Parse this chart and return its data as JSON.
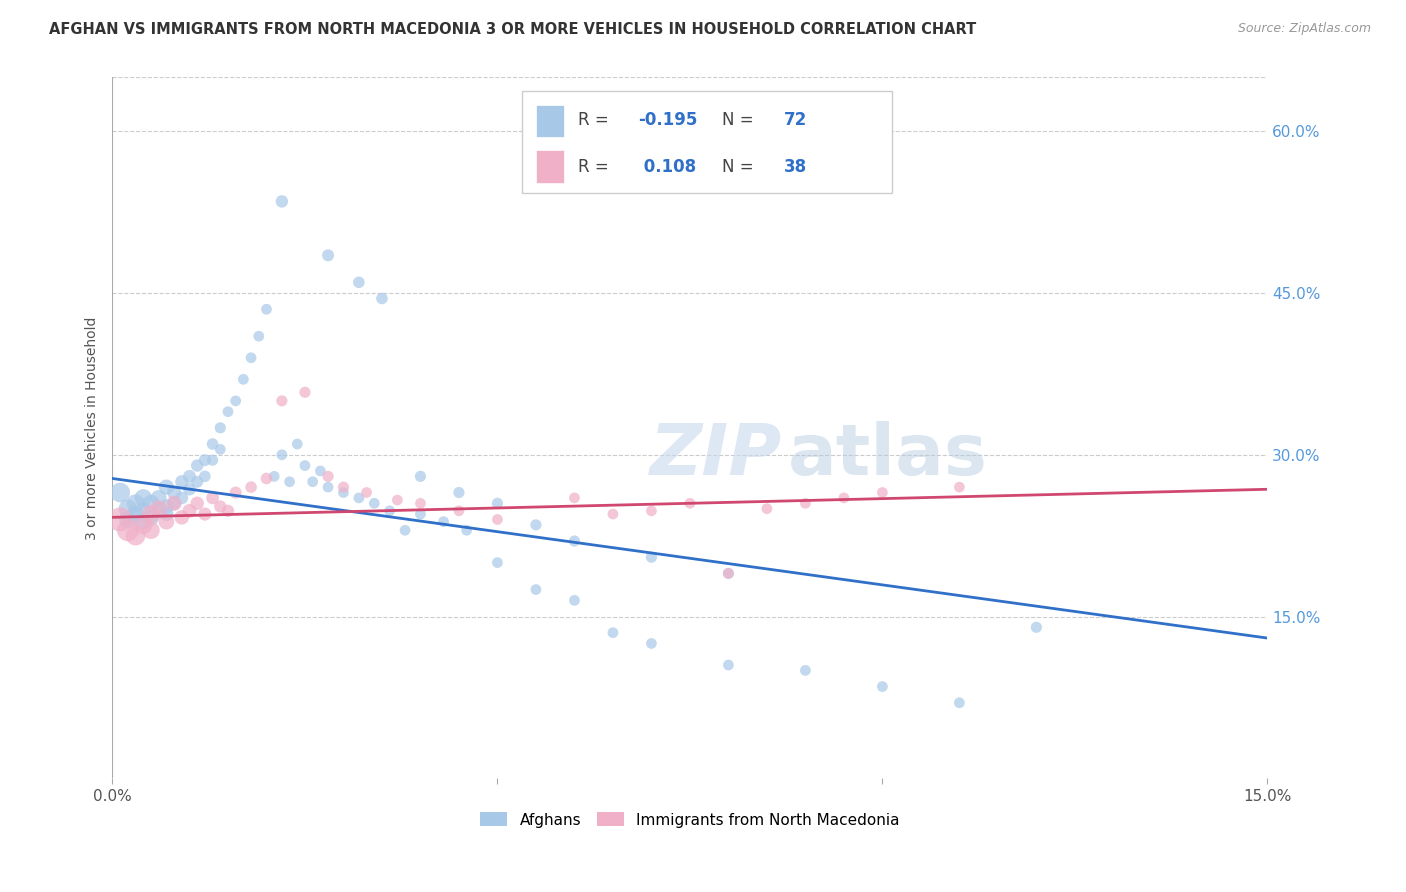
{
  "title": "AFGHAN VS IMMIGRANTS FROM NORTH MACEDONIA 3 OR MORE VEHICLES IN HOUSEHOLD CORRELATION CHART",
  "source": "Source: ZipAtlas.com",
  "ylabel": "3 or more Vehicles in Household",
  "ytick_labels": [
    "60.0%",
    "45.0%",
    "30.0%",
    "15.0%"
  ],
  "ytick_values": [
    0.6,
    0.45,
    0.3,
    0.15
  ],
  "xlim": [
    0.0,
    0.15
  ],
  "ylim": [
    0.0,
    0.65
  ],
  "legend_blue_R": "-0.195",
  "legend_blue_N": "72",
  "legend_pink_R": "0.108",
  "legend_pink_N": "38",
  "blue_color": "#a8c8e8",
  "pink_color": "#f0b0c8",
  "line_blue_color": "#3070c8",
  "line_pink_color": "#d04870",
  "watermark_zip": "ZIP",
  "watermark_atlas": "atlas",
  "blue_points_x": [
    0.001,
    0.002,
    0.002,
    0.003,
    0.003,
    0.004,
    0.004,
    0.004,
    0.005,
    0.005,
    0.006,
    0.006,
    0.007,
    0.007,
    0.007,
    0.008,
    0.008,
    0.009,
    0.009,
    0.01,
    0.01,
    0.011,
    0.011,
    0.012,
    0.012,
    0.013,
    0.013,
    0.014,
    0.014,
    0.015,
    0.016,
    0.017,
    0.018,
    0.019,
    0.02,
    0.021,
    0.022,
    0.023,
    0.024,
    0.025,
    0.026,
    0.027,
    0.028,
    0.03,
    0.032,
    0.034,
    0.036,
    0.038,
    0.04,
    0.043,
    0.046,
    0.05,
    0.055,
    0.06,
    0.065,
    0.07,
    0.08,
    0.09,
    0.1,
    0.11,
    0.022,
    0.028,
    0.032,
    0.035,
    0.04,
    0.045,
    0.05,
    0.055,
    0.06,
    0.07,
    0.08,
    0.12
  ],
  "blue_points_y": [
    0.265,
    0.25,
    0.24,
    0.255,
    0.245,
    0.26,
    0.248,
    0.238,
    0.255,
    0.242,
    0.26,
    0.248,
    0.27,
    0.252,
    0.245,
    0.265,
    0.255,
    0.275,
    0.26,
    0.28,
    0.268,
    0.29,
    0.275,
    0.295,
    0.28,
    0.31,
    0.295,
    0.325,
    0.305,
    0.34,
    0.35,
    0.37,
    0.39,
    0.41,
    0.435,
    0.28,
    0.3,
    0.275,
    0.31,
    0.29,
    0.275,
    0.285,
    0.27,
    0.265,
    0.26,
    0.255,
    0.248,
    0.23,
    0.245,
    0.238,
    0.23,
    0.2,
    0.175,
    0.165,
    0.135,
    0.125,
    0.105,
    0.1,
    0.085,
    0.07,
    0.535,
    0.485,
    0.46,
    0.445,
    0.28,
    0.265,
    0.255,
    0.235,
    0.22,
    0.205,
    0.19,
    0.14
  ],
  "blue_sizes": [
    200,
    180,
    160,
    170,
    150,
    160,
    140,
    130,
    150,
    140,
    130,
    120,
    120,
    110,
    105,
    100,
    95,
    90,
    85,
    85,
    80,
    80,
    75,
    75,
    70,
    70,
    65,
    65,
    60,
    60,
    60,
    60,
    60,
    60,
    60,
    60,
    60,
    60,
    60,
    60,
    60,
    60,
    60,
    60,
    60,
    60,
    60,
    60,
    60,
    60,
    60,
    60,
    60,
    60,
    60,
    60,
    60,
    60,
    60,
    60,
    80,
    75,
    70,
    70,
    65,
    65,
    65,
    65,
    65,
    65,
    65,
    65
  ],
  "pink_points_x": [
    0.001,
    0.002,
    0.003,
    0.004,
    0.005,
    0.005,
    0.006,
    0.007,
    0.008,
    0.009,
    0.01,
    0.011,
    0.012,
    0.013,
    0.014,
    0.015,
    0.016,
    0.018,
    0.02,
    0.022,
    0.025,
    0.028,
    0.03,
    0.033,
    0.037,
    0.04,
    0.045,
    0.05,
    0.06,
    0.065,
    0.07,
    0.075,
    0.08,
    0.085,
    0.09,
    0.095,
    0.1,
    0.11
  ],
  "pink_points_y": [
    0.24,
    0.23,
    0.225,
    0.235,
    0.245,
    0.23,
    0.25,
    0.238,
    0.255,
    0.242,
    0.248,
    0.255,
    0.245,
    0.26,
    0.252,
    0.248,
    0.265,
    0.27,
    0.278,
    0.35,
    0.358,
    0.28,
    0.27,
    0.265,
    0.258,
    0.255,
    0.248,
    0.24,
    0.26,
    0.245,
    0.248,
    0.255,
    0.19,
    0.25,
    0.255,
    0.26,
    0.265,
    0.27
  ],
  "pink_sizes": [
    300,
    250,
    200,
    180,
    170,
    160,
    150,
    130,
    120,
    110,
    100,
    95,
    90,
    85,
    80,
    80,
    75,
    70,
    70,
    65,
    65,
    65,
    65,
    60,
    60,
    60,
    60,
    60,
    60,
    60,
    60,
    60,
    60,
    60,
    60,
    60,
    60,
    60
  ],
  "blue_line_x": [
    0.0,
    0.15
  ],
  "blue_line_y": [
    0.278,
    0.13
  ],
  "pink_line_x": [
    0.0,
    0.15
  ],
  "pink_line_y": [
    0.242,
    0.268
  ],
  "grid_color": "#cccccc",
  "background_color": "#ffffff"
}
